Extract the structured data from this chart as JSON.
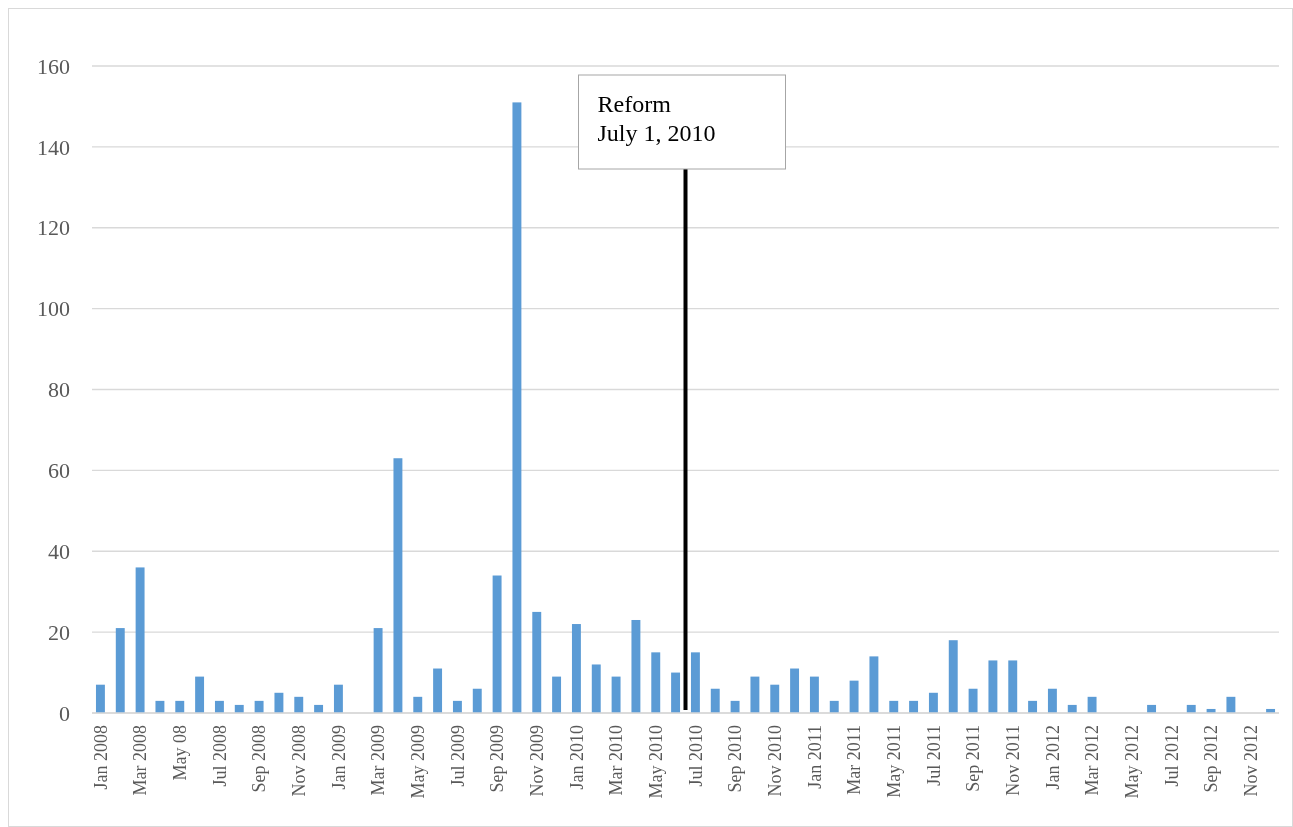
{
  "chart_data": {
    "type": "bar",
    "categories": [
      "Jan 2008",
      null,
      "Mar 2008",
      null,
      "May 08",
      null,
      "Jul 2008",
      null,
      "Sep 2008",
      null,
      "Nov 2008",
      null,
      "Jan 2009",
      null,
      "Mar 2009",
      null,
      "May 2009",
      null,
      "Jul 2009",
      null,
      "Sep 2009",
      null,
      "Nov 2009",
      null,
      "Jan 2010",
      null,
      "Mar 2010",
      null,
      "May 2010",
      null,
      "Jul 2010",
      null,
      "Sep 2010",
      null,
      "Nov 2010",
      null,
      "Jan 2011",
      null,
      "Mar 2011",
      null,
      "May 2011",
      null,
      "Jul 2011",
      null,
      "Sep 2011",
      null,
      "Nov 2011",
      null,
      "Jan 2012",
      null,
      "Mar 2012",
      null,
      "May 2012",
      null,
      "Jul 2012",
      null,
      "Sep 2012",
      null,
      "Nov 2012",
      null
    ],
    "values": [
      7,
      21,
      36,
      3,
      3,
      9,
      3,
      2,
      3,
      5,
      4,
      2,
      7,
      0,
      21,
      63,
      4,
      11,
      3,
      6,
      34,
      151,
      25,
      9,
      22,
      12,
      9,
      23,
      15,
      10,
      15,
      6,
      3,
      9,
      7,
      11,
      9,
      3,
      8,
      14,
      3,
      3,
      5,
      18,
      6,
      13,
      13,
      3,
      6,
      2,
      4,
      0,
      0,
      2,
      0,
      2,
      1,
      4,
      0,
      1
    ],
    "color": "#5b9bd5",
    "ylim": [
      0,
      160
    ],
    "yticks": [
      0,
      20,
      40,
      60,
      80,
      100,
      120,
      140,
      160
    ],
    "grid": "y",
    "ref_lines": [
      {
        "axis": "x",
        "value": "Jul 2010",
        "label": "Reform\nJuly 1, 2010",
        "color": "#000000"
      }
    ]
  }
}
